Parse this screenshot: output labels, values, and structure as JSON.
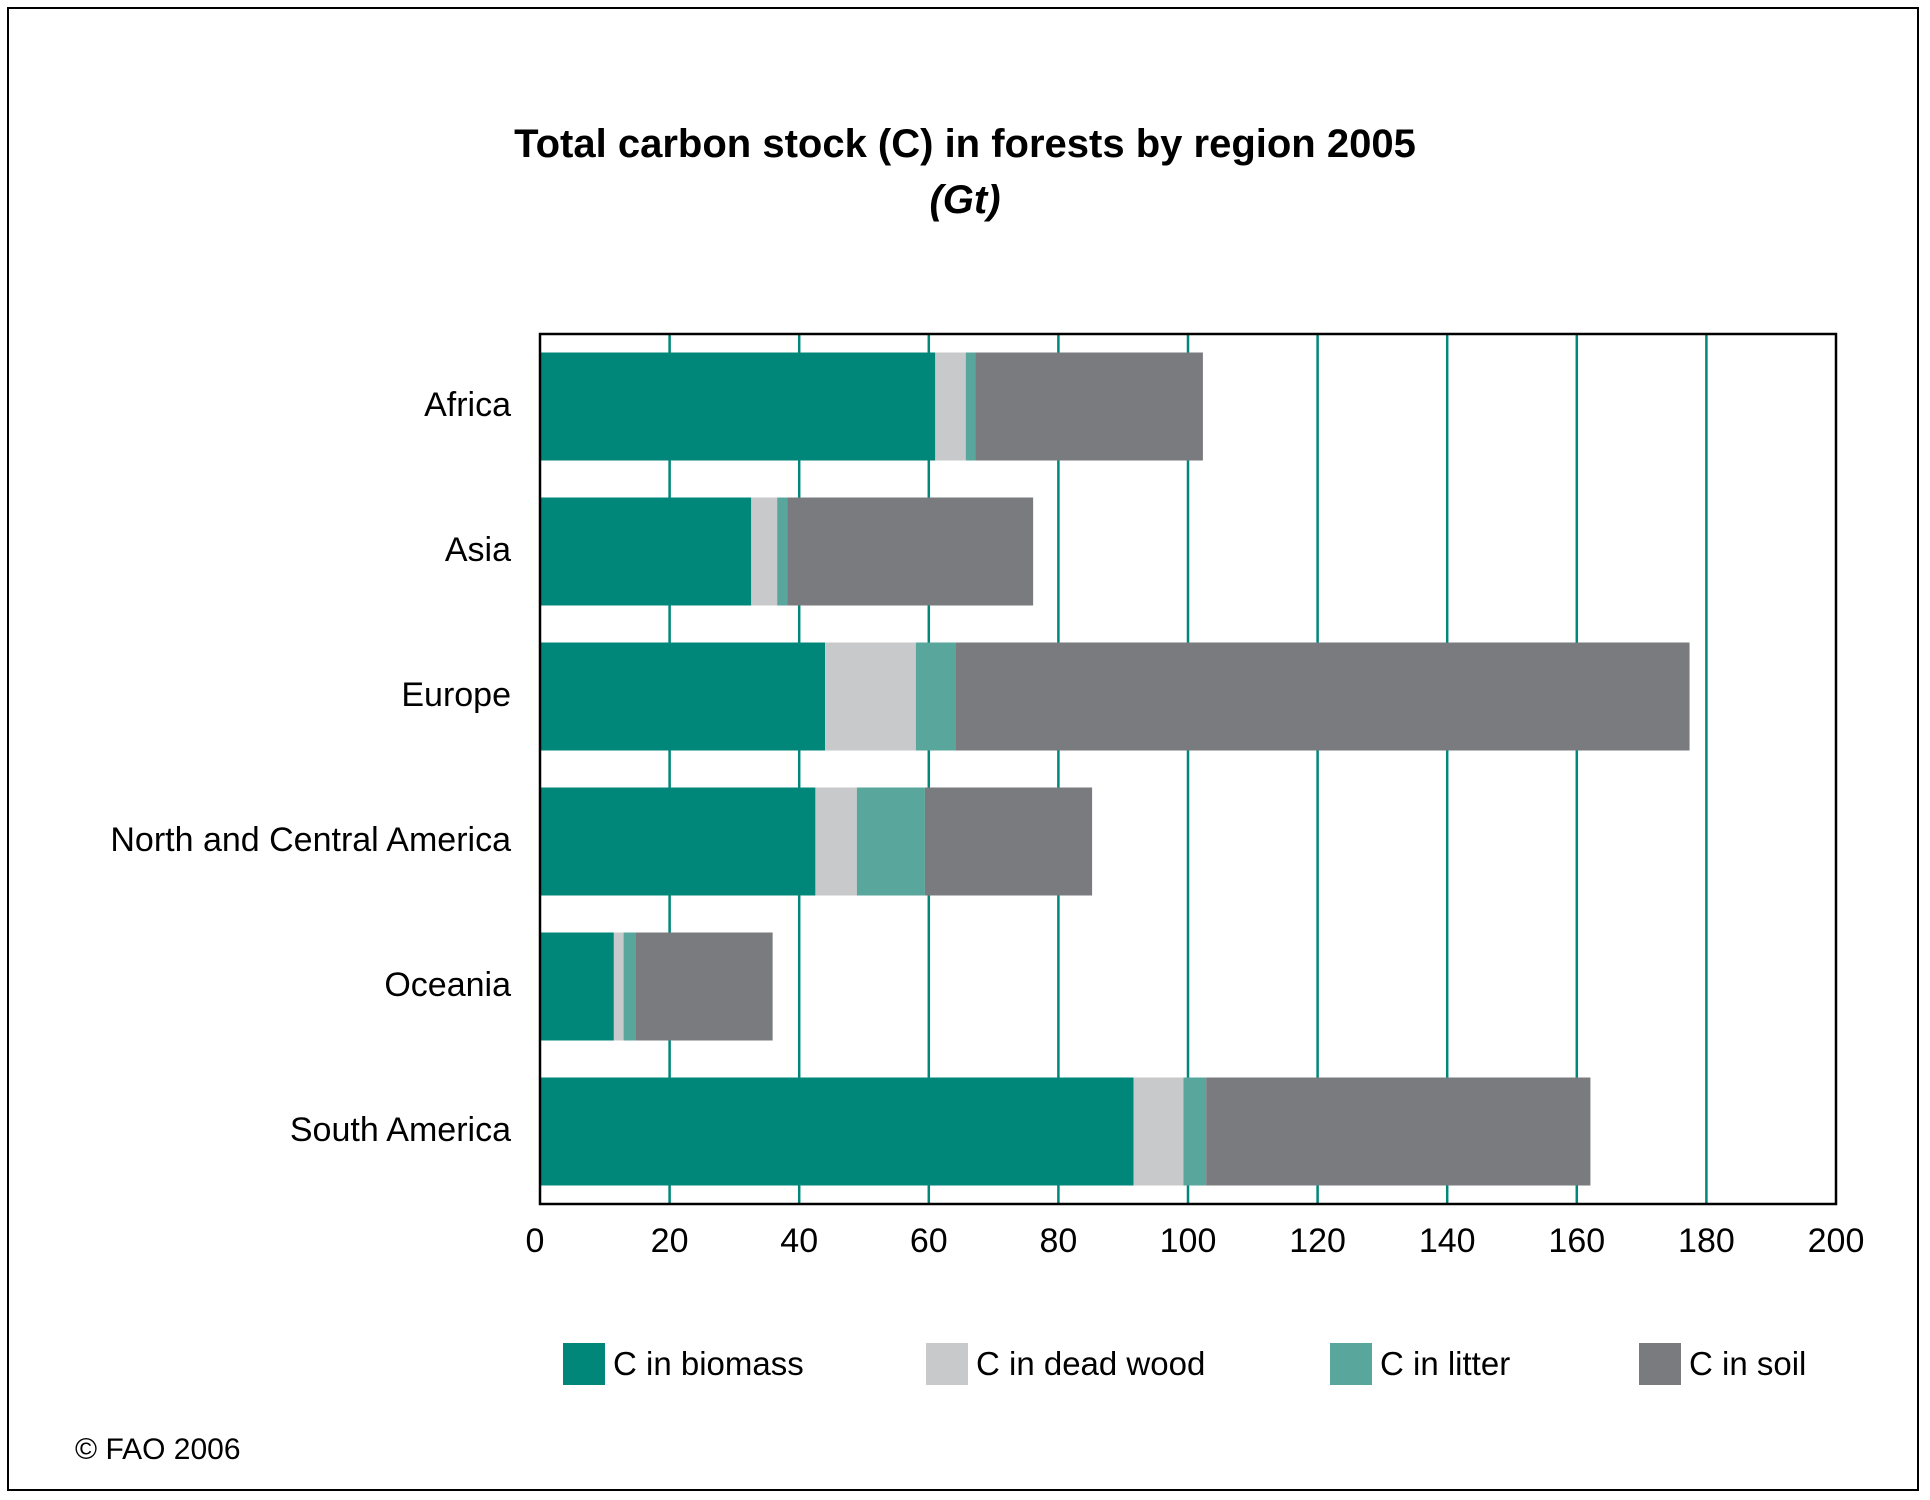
{
  "chart_data": {
    "type": "bar",
    "orientation": "horizontal",
    "stacked": true,
    "title": "Total carbon stock (C) in forests by region 2005",
    "subtitle": "(Gt)",
    "xlabel": "",
    "ylabel": "",
    "xlim": [
      0,
      200
    ],
    "xticks": [
      0,
      20,
      40,
      60,
      80,
      100,
      120,
      140,
      160,
      180,
      200
    ],
    "grid": "vertical",
    "legend_position": "bottom",
    "categories": [
      "Africa",
      "Asia",
      "Europe",
      "North and Central America",
      "Oceania",
      "South America"
    ],
    "series": [
      {
        "name": "C in biomass",
        "color": "#00877a",
        "values": [
          61.0,
          32.6,
          44.0,
          42.5,
          11.4,
          91.6
        ]
      },
      {
        "name": "C in dead wood",
        "color": "#c8c9ca",
        "values": [
          4.7,
          4.0,
          14.0,
          6.4,
          1.5,
          7.7
        ]
      },
      {
        "name": "C in litter",
        "color": "#59a69c",
        "values": [
          1.5,
          1.6,
          6.2,
          10.5,
          1.8,
          3.5
        ]
      },
      {
        "name": "C in soil",
        "color": "#7a7b7e",
        "values": [
          35.1,
          37.9,
          113.2,
          25.8,
          21.2,
          59.3
        ]
      }
    ],
    "gridline_color": "#00877a"
  },
  "copyright": "© FAO 2006"
}
